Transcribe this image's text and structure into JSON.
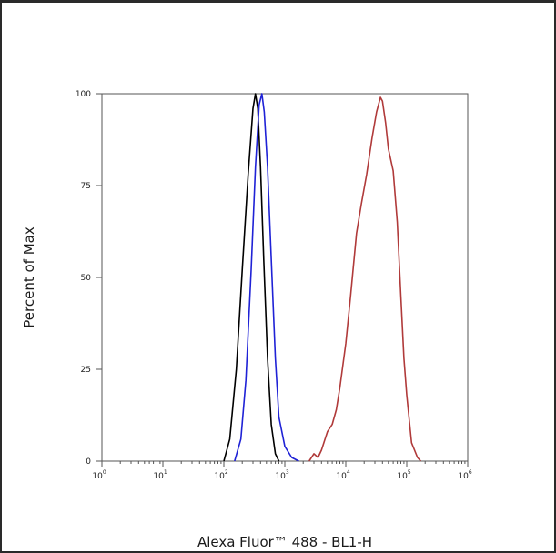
{
  "chart_data": {
    "type": "line",
    "title": "",
    "xlabel": "Alexa Fluor™ 488 - BL1-H",
    "ylabel": "Percent of Max",
    "xscale": "log",
    "xlim": [
      1,
      1000000
    ],
    "ylim": [
      0,
      100
    ],
    "x_tick_labels": [
      {
        "value": 1,
        "base": "10",
        "exp": "0"
      },
      {
        "value": 10,
        "base": "10",
        "exp": "1"
      },
      {
        "value": 100,
        "base": "10",
        "exp": "2"
      },
      {
        "value": 1000,
        "base": "10",
        "exp": "3"
      },
      {
        "value": 10000,
        "base": "10",
        "exp": "4"
      },
      {
        "value": 100000,
        "base": "10",
        "exp": "5"
      },
      {
        "value": 1000000,
        "base": "10",
        "exp": "6"
      }
    ],
    "y_tick_labels": [
      {
        "value": 0,
        "label": "0"
      },
      {
        "value": 25,
        "label": "25"
      },
      {
        "value": 50,
        "label": "50"
      },
      {
        "value": 75,
        "label": "75"
      },
      {
        "value": 100,
        "label": "100"
      }
    ],
    "grid": false,
    "legend": "none",
    "series": [
      {
        "color": "#000000",
        "points": [
          [
            100,
            0
          ],
          [
            125,
            6
          ],
          [
            160,
            25
          ],
          [
            200,
            52
          ],
          [
            250,
            78
          ],
          [
            300,
            96
          ],
          [
            330,
            100
          ],
          [
            360,
            96
          ],
          [
            400,
            80
          ],
          [
            450,
            55
          ],
          [
            520,
            28
          ],
          [
            600,
            10
          ],
          [
            700,
            2
          ],
          [
            800,
            0
          ]
        ]
      },
      {
        "color": "#1f22d6",
        "points": [
          [
            150,
            0
          ],
          [
            190,
            6
          ],
          [
            230,
            22
          ],
          [
            280,
            52
          ],
          [
            330,
            80
          ],
          [
            380,
            97
          ],
          [
            420,
            100
          ],
          [
            460,
            95
          ],
          [
            520,
            80
          ],
          [
            600,
            55
          ],
          [
            700,
            28
          ],
          [
            800,
            12
          ],
          [
            1000,
            4
          ],
          [
            1300,
            1
          ],
          [
            1700,
            0
          ]
        ]
      },
      {
        "color": "#b03a3a",
        "points": [
          [
            2500,
            0
          ],
          [
            3000,
            2
          ],
          [
            3500,
            1
          ],
          [
            4000,
            3
          ],
          [
            5000,
            8
          ],
          [
            6000,
            10
          ],
          [
            7000,
            14
          ],
          [
            8000,
            20
          ],
          [
            10000,
            32
          ],
          [
            12000,
            45
          ],
          [
            15000,
            62
          ],
          [
            18000,
            70
          ],
          [
            22000,
            78
          ],
          [
            27000,
            88
          ],
          [
            32000,
            95
          ],
          [
            37000,
            99
          ],
          [
            40000,
            98
          ],
          [
            45000,
            92
          ],
          [
            50000,
            85
          ],
          [
            60000,
            79
          ],
          [
            70000,
            65
          ],
          [
            80000,
            45
          ],
          [
            90000,
            28
          ],
          [
            100000,
            18
          ],
          [
            120000,
            5
          ],
          [
            150000,
            1
          ],
          [
            170000,
            0
          ]
        ]
      }
    ]
  }
}
